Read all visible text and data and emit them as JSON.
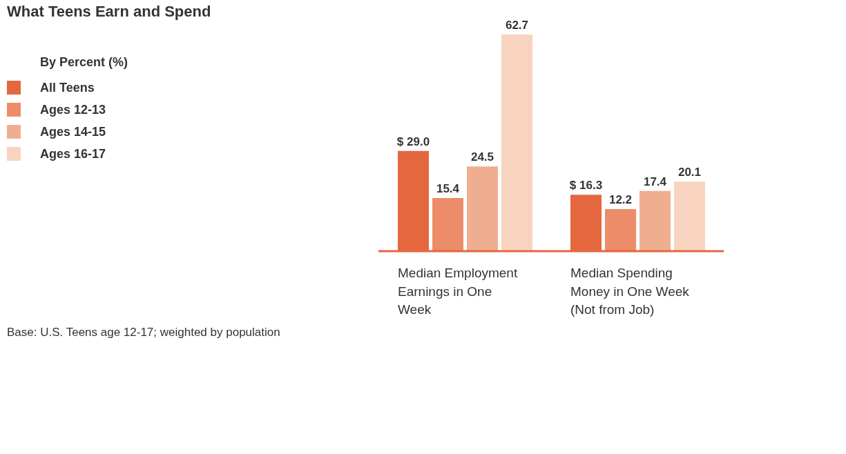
{
  "chart_data": {
    "type": "bar",
    "title": "What Teens Earn and Spend",
    "legend_title": "By Percent (%)",
    "legend": "top left",
    "categories": [
      "Median Employment Earnings in One Week",
      "Median Spending Money in One Week (Not from Job)"
    ],
    "series": [
      {
        "name": "All Teens",
        "color": "#e4673f",
        "values": [
          29.0,
          16.3
        ],
        "value_labels": [
          "$ 29.0",
          "$ 16.3"
        ]
      },
      {
        "name": "Ages 12-13",
        "color": "#ec8c69",
        "values": [
          15.4,
          12.2
        ]
      },
      {
        "name": "Ages 14-15",
        "color": "#f0ae90",
        "values": [
          24.5,
          17.4
        ]
      },
      {
        "name": "Ages 16-17",
        "color": "#f8d4c0",
        "values": [
          62.7,
          20.1
        ]
      }
    ],
    "data_labels": true,
    "annotations": [
      "Base: U.S. Teens age 12-17; weighted by population"
    ]
  }
}
